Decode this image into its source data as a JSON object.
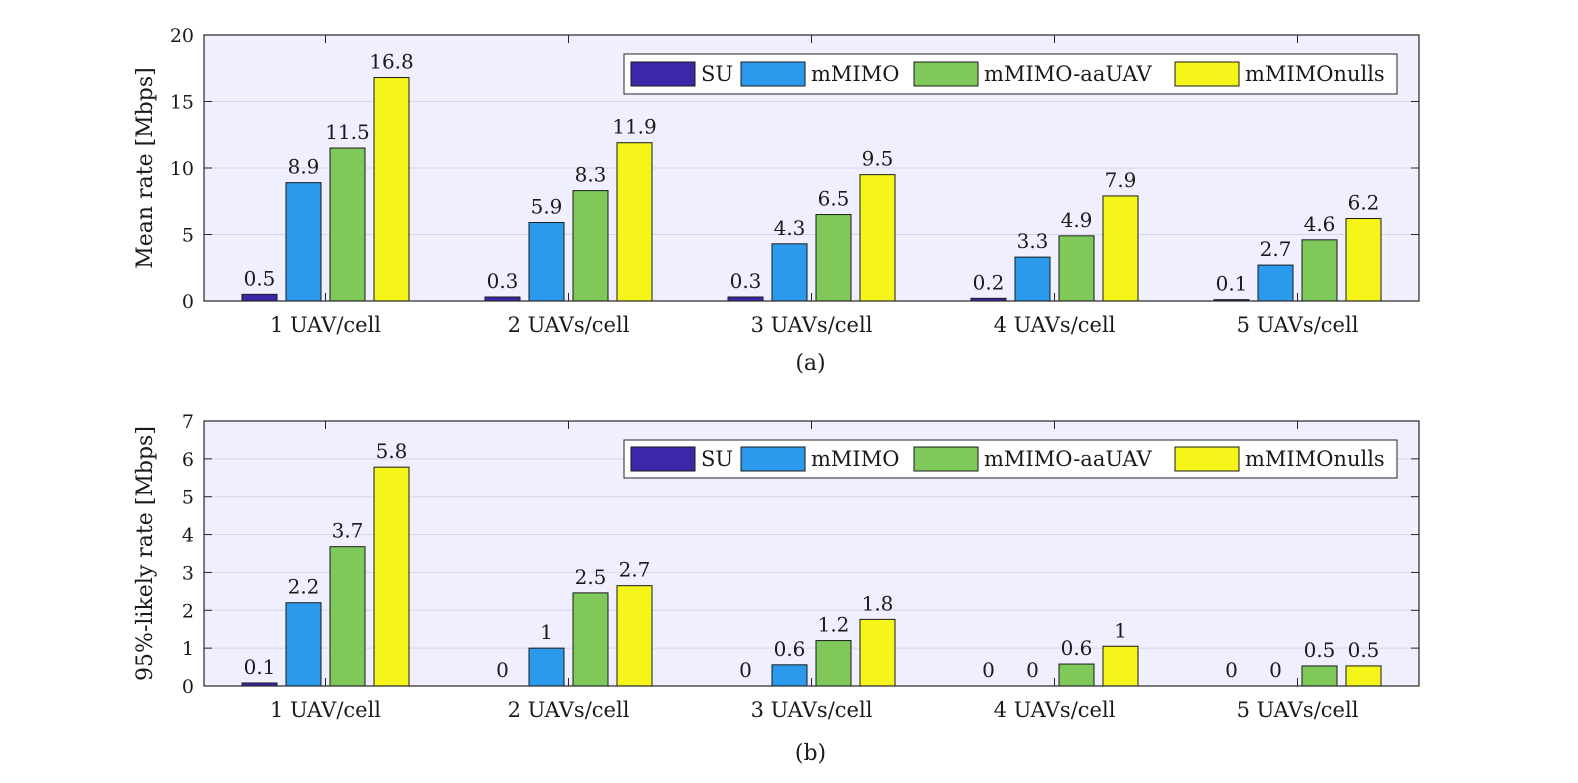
{
  "colors": {
    "plot_bg": "#efefff",
    "grid": "#d6d6ea",
    "axis": "#262626"
  },
  "chart_data": [
    {
      "type": "bar",
      "caption": "(a)",
      "ylabel": "Mean rate [Mbps]",
      "ylim": [
        0,
        20
      ],
      "yticks": [
        0,
        5,
        10,
        15,
        20
      ],
      "grid": true,
      "legend": "top-right",
      "categories": [
        "1 UAV/cell",
        "2 UAVs/cell",
        "3 UAVs/cell",
        "4 UAVs/cell",
        "5 UAVs/cell"
      ],
      "series": [
        {
          "name": "SU",
          "color": "#3a28a8",
          "values": [
            0.5,
            0.3,
            0.3,
            0.2,
            0.1
          ],
          "labels": [
            "0.5",
            "0.3",
            "0.3",
            "0.2",
            "0.1"
          ]
        },
        {
          "name": "mMIMO",
          "color": "#2b9aec",
          "values": [
            8.9,
            5.9,
            4.3,
            3.3,
            2.7
          ],
          "labels": [
            "8.9",
            "5.9",
            "4.3",
            "3.3",
            "2.7"
          ]
        },
        {
          "name": "mMIMO-aaUAV",
          "color": "#7ec95a",
          "values": [
            11.5,
            8.3,
            6.5,
            4.9,
            4.6
          ],
          "labels": [
            "11.5",
            "8.3",
            "6.5",
            "4.9",
            "4.6"
          ]
        },
        {
          "name": "mMIMOnulls",
          "color": "#f5f51a",
          "values": [
            16.8,
            11.9,
            9.5,
            7.9,
            6.2
          ],
          "labels": [
            "16.8",
            "11.9",
            "9.5",
            "7.9",
            "6.2"
          ]
        }
      ]
    },
    {
      "type": "bar",
      "caption": "(b)",
      "ylabel": "95%-likely rate [Mbps]",
      "ylim": [
        0,
        7
      ],
      "yticks": [
        0,
        1,
        2,
        3,
        4,
        5,
        6,
        7
      ],
      "grid": true,
      "legend": "top-right",
      "categories": [
        "1 UAV/cell",
        "2 UAVs/cell",
        "3 UAVs/cell",
        "4 UAVs/cell",
        "5 UAVs/cell"
      ],
      "series": [
        {
          "name": "SU",
          "color": "#3a28a8",
          "values": [
            0.08,
            0,
            0,
            0,
            0
          ],
          "labels": [
            "0.1",
            "0",
            "0",
            "0",
            "0"
          ]
        },
        {
          "name": "mMIMO",
          "color": "#2b9aec",
          "values": [
            2.2,
            1.0,
            0.56,
            0,
            0
          ],
          "labels": [
            "2.2",
            "1",
            "0.6",
            "0",
            "0"
          ]
        },
        {
          "name": "mMIMO-aaUAV",
          "color": "#7ec95a",
          "values": [
            3.68,
            2.46,
            1.2,
            0.58,
            0.53
          ],
          "labels": [
            "3.7",
            "2.5",
            "1.2",
            "0.6",
            "0.5"
          ]
        },
        {
          "name": "mMIMOnulls",
          "color": "#f5f51a",
          "values": [
            5.78,
            2.65,
            1.76,
            1.05,
            0.53
          ],
          "labels": [
            "5.8",
            "2.7",
            "1.8",
            "1",
            "0.5"
          ]
        }
      ]
    }
  ]
}
